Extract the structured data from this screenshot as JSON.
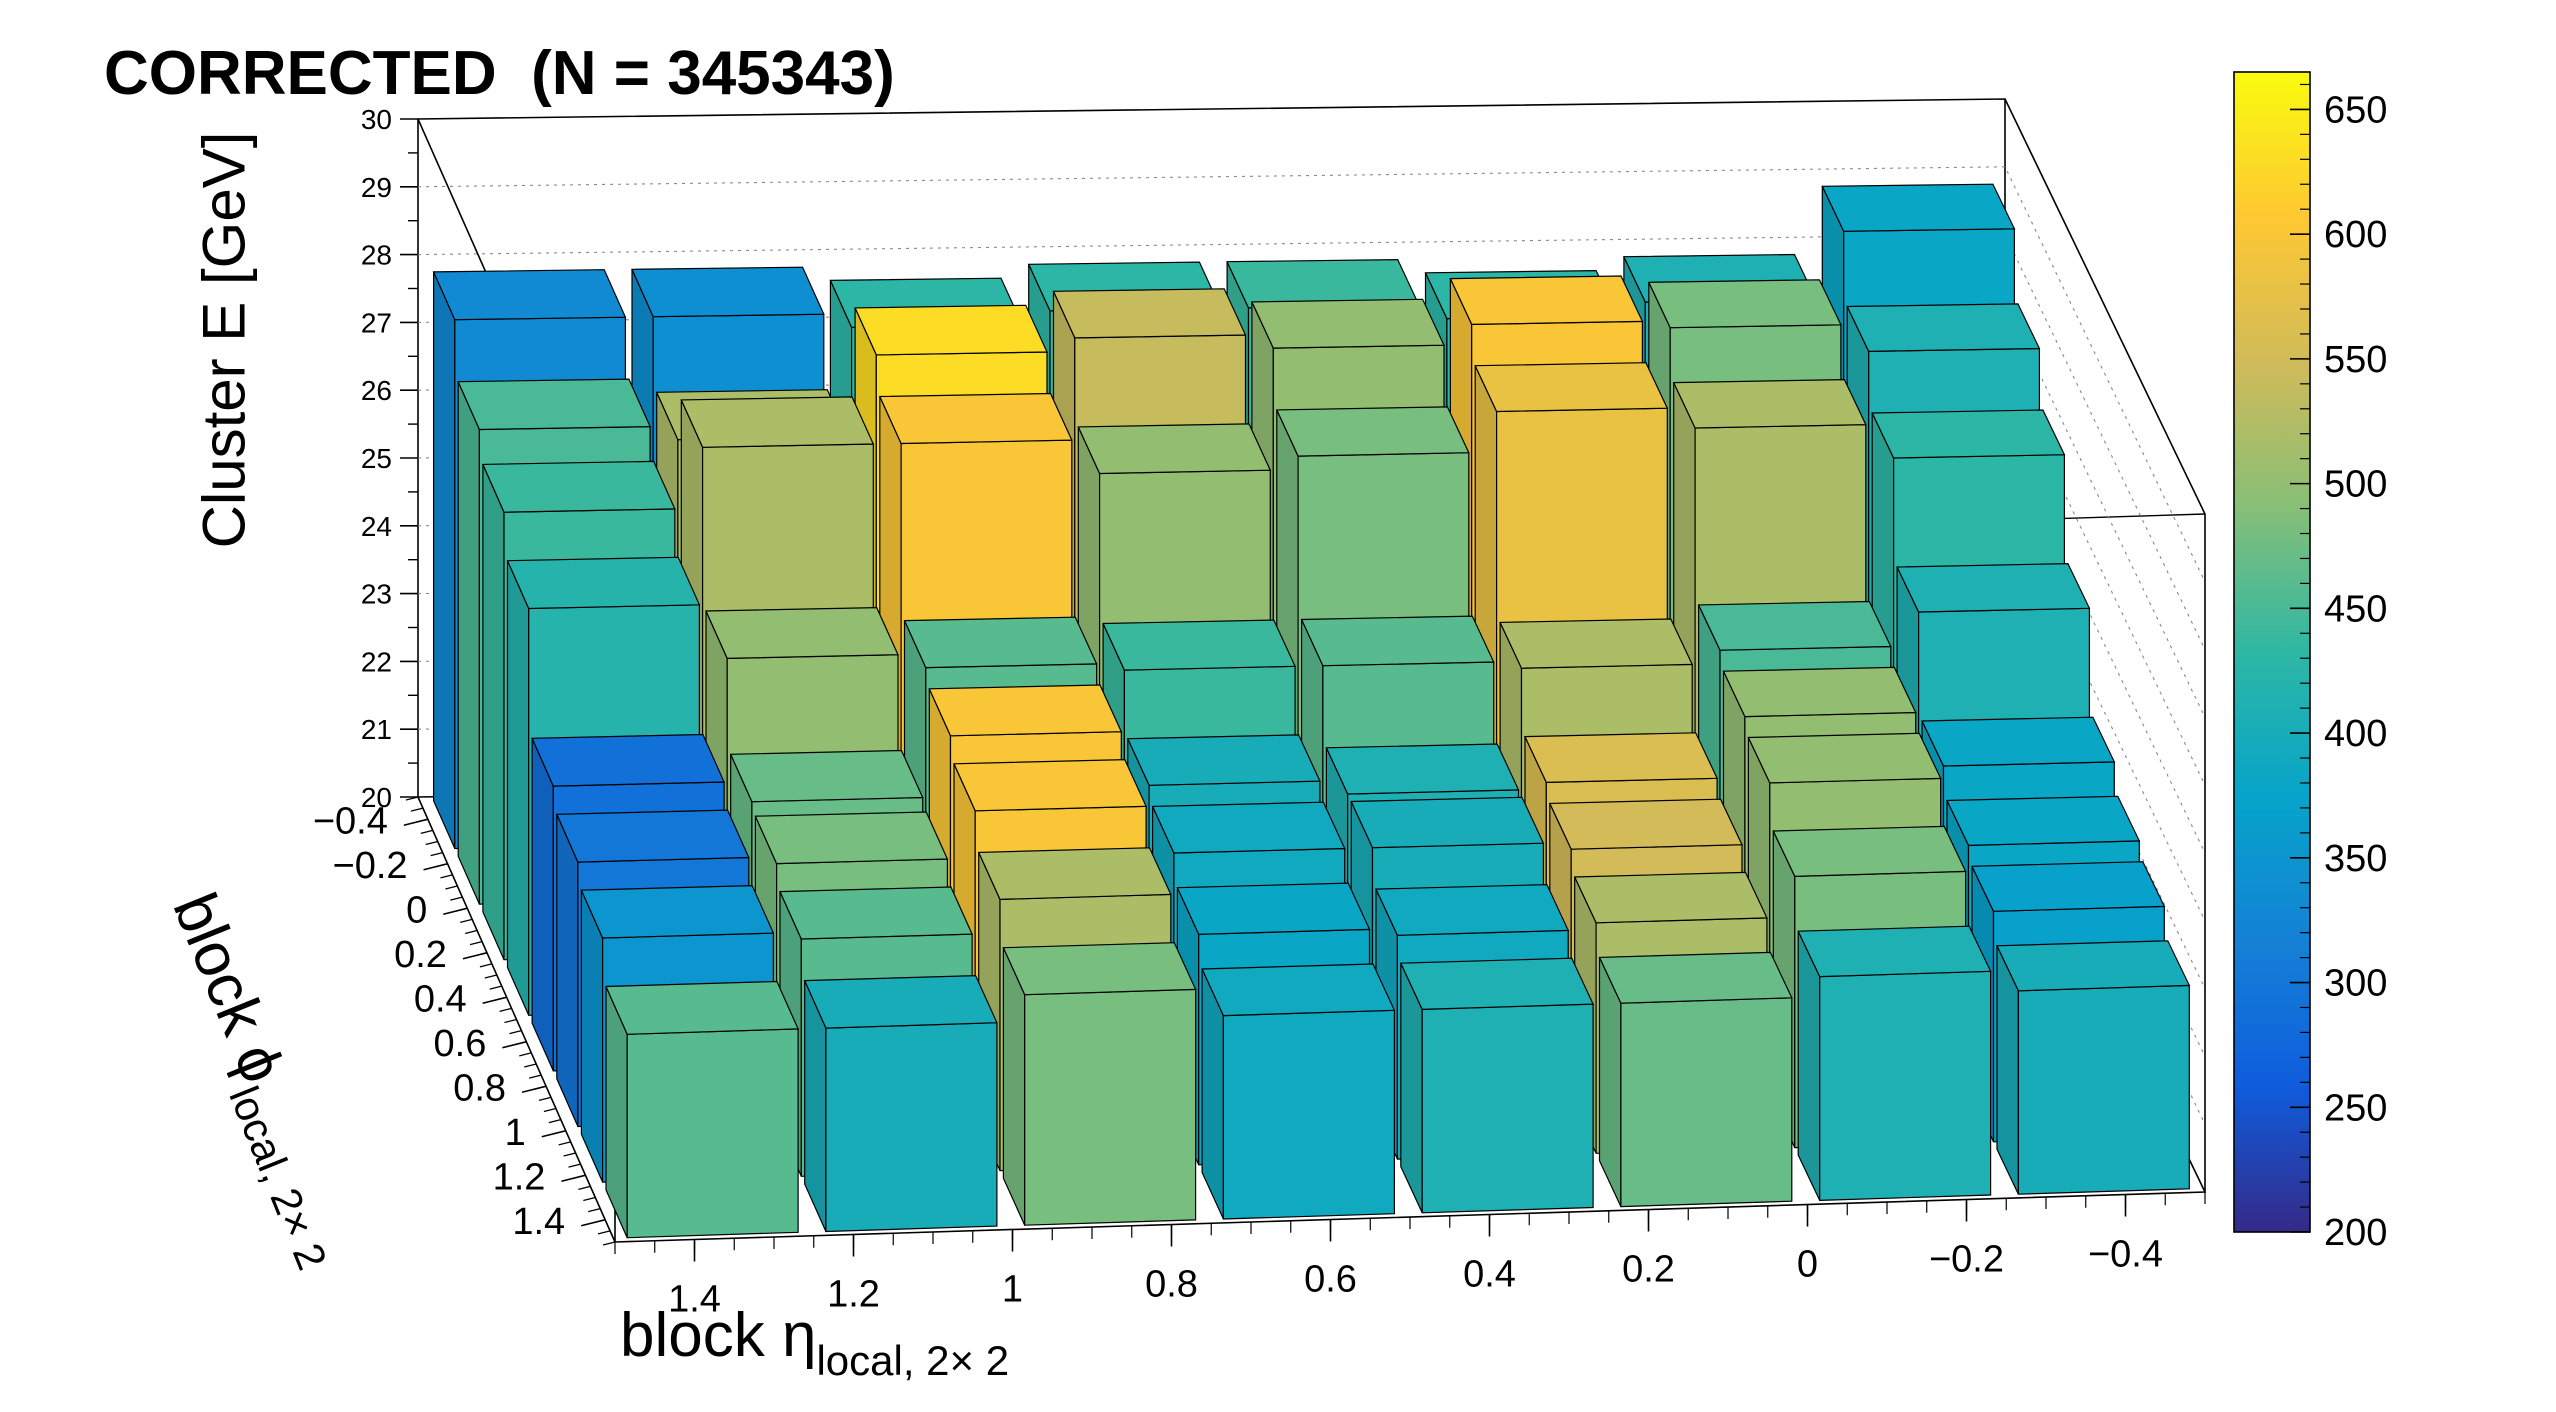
{
  "chart_data": {
    "type": "lego3d",
    "title": "CORRECTED  (N = 345343)",
    "zlabel": "Cluster E  [GeV]",
    "xlabel_main": "block η",
    "xlabel_sub": "local, 2× 2",
    "ylabel_main": "block ϕ",
    "ylabel_sub": "local, 2× 2",
    "x_ticks": [
      "1.4",
      "1.2",
      "1",
      "0.8",
      "0.6",
      "0.4",
      "0.2",
      "0",
      "−0.2",
      "−0.4"
    ],
    "y_ticks": [
      "−0.4",
      "−0.2",
      "0",
      "0.2",
      "0.4",
      "0.6",
      "0.8",
      "1",
      "1.2",
      "1.4"
    ],
    "z_ticks": [
      "20",
      "21",
      "22",
      "23",
      "24",
      "25",
      "26",
      "27",
      "28",
      "29",
      "30"
    ],
    "zlim": [
      20,
      30
    ],
    "colorbar_ticks": [
      "200",
      "250",
      "300",
      "350",
      "400",
      "450",
      "500",
      "550",
      "600",
      "650"
    ],
    "colorbar_range": [
      200,
      665
    ],
    "colormap": [
      "#352a87",
      "#0f5cdd",
      "#1481d6",
      "#06a4ca",
      "#2eb7a4",
      "#87bf77",
      "#d1bb59",
      "#fec832",
      "#f9fb0e"
    ],
    "x_bins": [
      1.375,
      1.125,
      0.875,
      0.625,
      0.375,
      0.125,
      -0.125,
      -0.375
    ],
    "y_bins": [
      -0.375,
      -0.125,
      0.125,
      0.375,
      0.625,
      0.875,
      1.125,
      1.375
    ],
    "heights": [
      [
        27.8,
        27.8,
        27.6,
        27.8,
        27.8,
        27.6,
        27.8,
        28.8
      ],
      [
        27.0,
        26.8,
        28.0,
        28.2,
        28.0,
        28.3,
        28.2,
        27.8
      ],
      [
        26.6,
        27.5,
        27.5,
        27.0,
        27.2,
        27.8,
        27.5,
        27.0
      ],
      [
        26.0,
        25.2,
        25.0,
        24.9,
        24.9,
        24.8,
        25.0,
        25.5
      ],
      [
        24.2,
        23.9,
        24.8,
        24.0,
        23.8,
        23.9,
        24.8,
        24.0
      ],
      [
        23.9,
        23.8,
        24.5,
        23.8,
        23.8,
        23.7,
        24.6,
        23.6
      ],
      [
        23.6,
        23.5,
        24.0,
        23.4,
        23.3,
        23.4,
        24.0,
        23.4
      ],
      [
        23.0,
        23.0,
        23.4,
        23.0,
        23.0,
        23.0,
        23.3,
        23.0
      ]
    ],
    "counts": [
      [
        330,
        340,
        430,
        430,
        440,
        430,
        410,
        380
      ],
      [
        450,
        520,
        630,
        540,
        500,
        600,
        480,
        410
      ],
      [
        440,
        520,
        600,
        500,
        480,
        580,
        520,
        430
      ],
      [
        420,
        500,
        460,
        440,
        460,
        520,
        450,
        410
      ],
      [
        290,
        470,
        600,
        400,
        410,
        560,
        500,
        380
      ],
      [
        300,
        480,
        600,
        390,
        400,
        550,
        500,
        380
      ],
      [
        350,
        460,
        520,
        380,
        390,
        520,
        480,
        370
      ],
      [
        460,
        400,
        480,
        390,
        410,
        470,
        410,
        400
      ]
    ]
  }
}
